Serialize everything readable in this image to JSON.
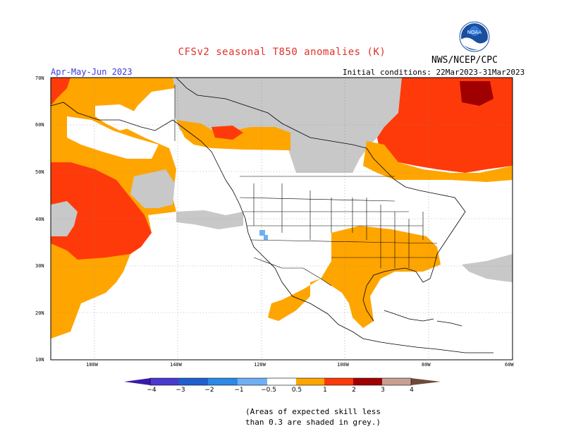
{
  "header": {
    "title": "CFSv2 seasonal T850 anomalies (K)",
    "agency": "NWS/NCEP/CPC",
    "season": "Apr-May-Jun 2023",
    "initial_conditions": "Initial conditions: 22Mar2023-31Mar2023"
  },
  "logo": {
    "icon": "noaa-logo-icon",
    "text": "NOAA"
  },
  "axes": {
    "lat_labels": [
      "70N",
      "60N",
      "50N",
      "40N",
      "30N",
      "20N",
      "10N"
    ],
    "lon_labels": [
      "180W",
      "140W",
      "120W",
      "100W",
      "80W",
      "60W"
    ]
  },
  "colorbar": {
    "labels": [
      "−4",
      "−3",
      "−2",
      "−1",
      "−0.5",
      "0.5",
      "1",
      "2",
      "3",
      "4"
    ],
    "colors": [
      "#3a1aa8",
      "#4a3ad0",
      "#1f5fd0",
      "#2b8ae6",
      "#6fb0f5",
      "#ffffff",
      "#ffa500",
      "#ff3a0a",
      "#a00000",
      "#c8a092",
      "#6e4a3c"
    ]
  },
  "note": {
    "line1": "(Areas of expected skill less",
    "line2": "than 0.3 are shaded in grey.)"
  }
}
